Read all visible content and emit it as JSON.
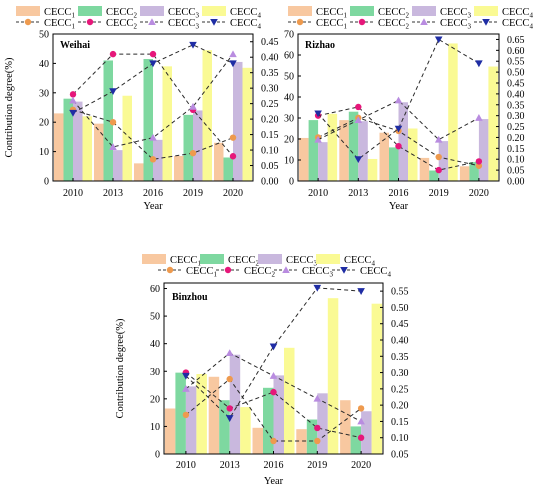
{
  "figure": {
    "legend": {
      "bar_names": [
        "CECC1",
        "CECC2",
        "CECC3",
        "CECC4"
      ],
      "line_names": [
        "CECC1",
        "CECC2",
        "CECC3",
        "CECC4"
      ]
    },
    "colors": {
      "bars": [
        "#f8c8a0",
        "#7ed8a0",
        "#c9b8de",
        "#fafa94"
      ],
      "lines": [
        "#ee9a4e",
        "#e6177a",
        "#b98ce0",
        "#1f2da4"
      ]
    },
    "marker_shapes": [
      "circle",
      "circle",
      "triangle-up",
      "triangle-down"
    ]
  },
  "chart_data": [
    {
      "type": "bar+line",
      "title": "Weihai",
      "xlabel": "Year",
      "ylabel": "Contribution degree(%)",
      "categories": [
        "2010",
        "2013",
        "2016",
        "2019",
        "2020"
      ],
      "ylim": [
        0,
        50
      ],
      "yticks": [
        0,
        10,
        20,
        30,
        40,
        50
      ],
      "y2lim": [
        0,
        0.475
      ],
      "y2ticks": [
        0.0,
        0.05,
        0.1,
        0.15,
        0.2,
        0.25,
        0.3,
        0.35,
        0.4,
        0.45
      ],
      "bars": [
        {
          "name": "CECC1",
          "values": [
            23,
            19.5,
            6,
            8.5,
            13
          ]
        },
        {
          "name": "CECC2",
          "values": [
            28,
            41,
            41.5,
            22.5,
            8
          ]
        },
        {
          "name": "CECC3",
          "values": [
            27,
            10.5,
            14,
            24,
            40.5
          ]
        },
        {
          "name": "CECC4",
          "values": [
            22,
            29,
            39,
            44.5,
            38.5
          ]
        }
      ],
      "lines": [
        {
          "name": "CECC1",
          "values": [
            0.23,
            0.19,
            0.07,
            0.09,
            0.14
          ]
        },
        {
          "name": "CECC2",
          "values": [
            0.28,
            0.41,
            0.41,
            0.23,
            0.08
          ]
        },
        {
          "name": "CECC3",
          "values": [
            0.26,
            0.11,
            0.14,
            0.24,
            0.41
          ]
        },
        {
          "name": "CECC4",
          "values": [
            0.22,
            0.29,
            0.38,
            0.44,
            0.38
          ]
        }
      ]
    },
    {
      "type": "bar+line",
      "title": "Rizhao",
      "xlabel": "Year",
      "ylabel": "",
      "categories": [
        "2010",
        "2013",
        "2016",
        "2019",
        "2020"
      ],
      "ylim": [
        0,
        70
      ],
      "yticks": [
        0,
        10,
        20,
        30,
        40,
        50,
        60,
        70
      ],
      "y2lim": [
        0,
        0.675
      ],
      "y2ticks": [
        0.0,
        0.05,
        0.1,
        0.15,
        0.2,
        0.25,
        0.3,
        0.35,
        0.4,
        0.45,
        0.5,
        0.55,
        0.6,
        0.65
      ],
      "bars": [
        {
          "name": "CECC1",
          "values": [
            20.5,
            29,
            23,
            11,
            7
          ]
        },
        {
          "name": "CECC2",
          "values": [
            29,
            33,
            16,
            5,
            9
          ]
        },
        {
          "name": "CECC3",
          "values": [
            18.5,
            28.5,
            37.5,
            19,
            29.5
          ]
        },
        {
          "name": "CECC4",
          "values": [
            32,
            10.5,
            25,
            65.5,
            54.5
          ]
        }
      ],
      "lines": [
        {
          "name": "CECC1",
          "values": [
            0.2,
            0.29,
            0.23,
            0.11,
            0.07
          ]
        },
        {
          "name": "CECC2",
          "values": [
            0.3,
            0.34,
            0.16,
            0.05,
            0.09
          ]
        },
        {
          "name": "CECC3",
          "values": [
            0.19,
            0.28,
            0.37,
            0.19,
            0.29
          ]
        },
        {
          "name": "CECC4",
          "values": [
            0.31,
            0.1,
            0.24,
            0.65,
            0.54
          ]
        }
      ]
    },
    {
      "type": "bar+line",
      "title": "Binzhou",
      "xlabel": "Year",
      "ylabel": "Contribution degree(%)",
      "categories": [
        "2010",
        "2013",
        "2016",
        "2019",
        "2020"
      ],
      "ylim": [
        0,
        62
      ],
      "yticks": [
        0,
        10,
        20,
        30,
        40,
        50,
        60
      ],
      "y2lim": [
        0.05,
        0.575
      ],
      "y2ticks": [
        0.05,
        0.1,
        0.15,
        0.2,
        0.25,
        0.3,
        0.35,
        0.4,
        0.45,
        0.5,
        0.55
      ],
      "bars": [
        {
          "name": "CECC1",
          "values": [
            16.5,
            28,
            9.5,
            9,
            19.5
          ]
        },
        {
          "name": "CECC2",
          "values": [
            29.5,
            19.5,
            24,
            12.5,
            10
          ]
        },
        {
          "name": "CECC3",
          "values": [
            24.5,
            36,
            28.5,
            22,
            15.5
          ]
        },
        {
          "name": "CECC4",
          "values": [
            29,
            17,
            38.5,
            56.5,
            54.5
          ]
        }
      ],
      "lines": [
        {
          "name": "CECC1",
          "values": [
            0.17,
            0.28,
            0.09,
            0.09,
            0.19
          ]
        },
        {
          "name": "CECC2",
          "values": [
            0.3,
            0.19,
            0.24,
            0.13,
            0.1
          ]
        },
        {
          "name": "CECC3",
          "values": [
            0.25,
            0.36,
            0.29,
            0.22,
            0.15
          ]
        },
        {
          "name": "CECC4",
          "values": [
            0.29,
            0.16,
            0.38,
            0.56,
            0.55
          ]
        }
      ]
    }
  ]
}
